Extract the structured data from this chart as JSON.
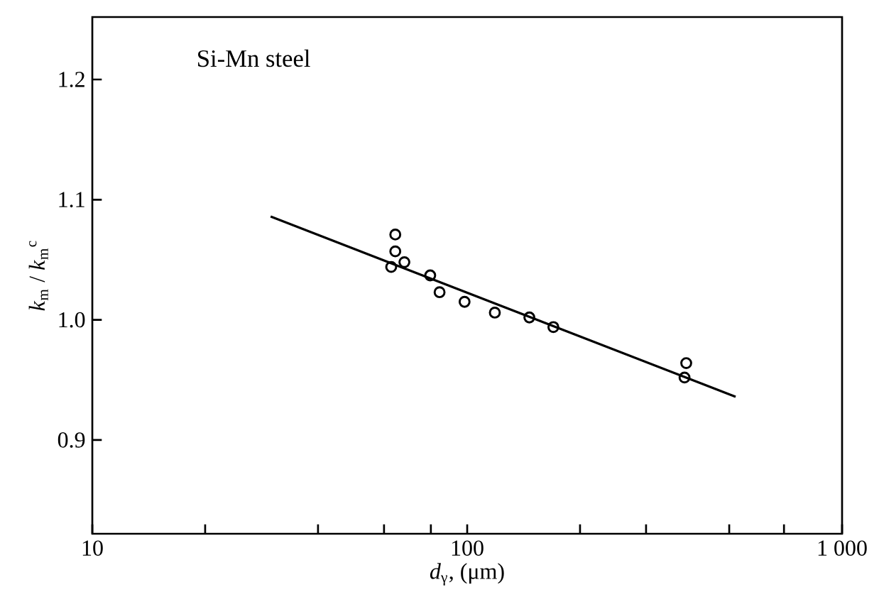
{
  "chart_data": {
    "type": "scatter",
    "xlabel": "*d*$_{γ}$, (μm)",
    "ylabel": "*k*$_{m}$ / *k*$_{m}$$^{c}$",
    "annotations": [
      "Si-Mn steel"
    ],
    "log": "x",
    "grid": false,
    "xlim": [
      10,
      1000
    ],
    "ylim": [
      0.822,
      1.252
    ],
    "xticks": [
      {
        "value": 10,
        "label": "10"
      },
      {
        "value": 20,
        "label": null
      },
      {
        "value": 40,
        "label": null
      },
      {
        "value": 60,
        "label": null
      },
      {
        "value": 80,
        "label": null
      },
      {
        "value": 100,
        "label": "100"
      },
      {
        "value": 200,
        "label": null
      },
      {
        "value": 300,
        "label": null
      },
      {
        "value": 500,
        "label": null
      },
      {
        "value": 700,
        "label": null
      },
      {
        "value": 1000,
        "label": "1 000"
      }
    ],
    "yticks": [
      {
        "value": 0.9,
        "label": "0.9"
      },
      {
        "value": 1.0,
        "label": "1.0"
      },
      {
        "value": 1.1,
        "label": "1.1"
      },
      {
        "value": 1.2,
        "label": "1.2"
      }
    ],
    "series": [
      {
        "color": "#000000",
        "marker": "circle",
        "x": [
          64.3,
          64.3,
          68.0,
          62.7,
          79.7,
          84.4,
          98.4,
          118.5,
          146.5,
          169.8,
          384,
          380
        ],
        "values": [
          1.071,
          1.057,
          1.048,
          1.044,
          1.037,
          1.023,
          1.015,
          1.006,
          1.002,
          0.994,
          0.964,
          0.952
        ]
      },
      {
        "type": "line",
        "color": "#000000",
        "marker": "none",
        "line_style": "solid",
        "x": [
          29.9,
          520
        ],
        "values": [
          1.086,
          0.936
        ]
      }
    ]
  }
}
